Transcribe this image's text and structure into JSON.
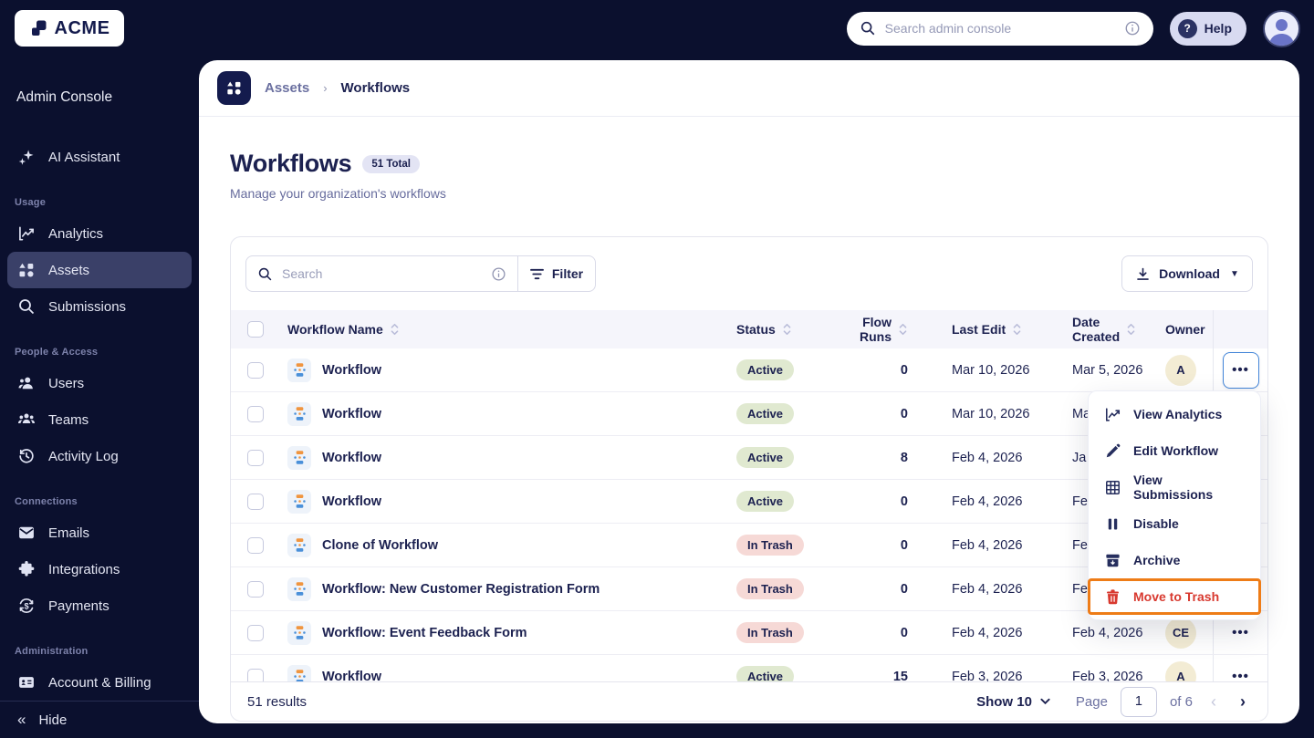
{
  "topbar": {
    "logo_text": "ACME",
    "search_placeholder": "Search admin console",
    "help_label": "Help"
  },
  "sidebar": {
    "title": "Admin Console",
    "groups": [
      {
        "label": null,
        "items": [
          {
            "label": "AI Assistant",
            "icon": "sparkle-icon",
            "active": false
          }
        ]
      },
      {
        "label": "Usage",
        "items": [
          {
            "label": "Analytics",
            "icon": "analytics-icon",
            "active": false
          },
          {
            "label": "Assets",
            "icon": "assets-icon",
            "active": true
          },
          {
            "label": "Submissions",
            "icon": "search-icon",
            "active": false
          }
        ]
      },
      {
        "label": "People & Access",
        "items": [
          {
            "label": "Users",
            "icon": "user-icon",
            "active": false
          },
          {
            "label": "Teams",
            "icon": "team-icon",
            "active": false
          },
          {
            "label": "Activity Log",
            "icon": "history-icon",
            "active": false
          }
        ]
      },
      {
        "label": "Connections",
        "items": [
          {
            "label": "Emails",
            "icon": "envelope-icon",
            "active": false
          },
          {
            "label": "Integrations",
            "icon": "puzzle-icon",
            "active": false
          },
          {
            "label": "Payments",
            "icon": "dollar-cycle-icon",
            "active": false
          }
        ]
      },
      {
        "label": "Administration",
        "items": [
          {
            "label": "Account & Billing",
            "icon": "card-icon",
            "active": false
          }
        ]
      }
    ],
    "hide_label": "Hide"
  },
  "breadcrumb": {
    "parent": "Assets",
    "current": "Workflows",
    "icon": "assets-icon"
  },
  "page": {
    "title": "Workflows",
    "total_badge": "51 Total",
    "subtitle": "Manage your organization's workflows"
  },
  "toolbar": {
    "search_placeholder": "Search",
    "filter_label": "Filter",
    "download_label": "Download"
  },
  "table": {
    "columns": [
      {
        "label": "Workflow Name",
        "sortable": true
      },
      {
        "label": "Status",
        "sortable": true
      },
      {
        "label": "Flow Runs",
        "sortable": true
      },
      {
        "label": "Last Edit",
        "sortable": true
      },
      {
        "label": "Date Created",
        "sortable": true
      },
      {
        "label": "Owner",
        "sortable": false
      }
    ],
    "rows": [
      {
        "name": "Workflow",
        "status": "Active",
        "flow_runs": "0",
        "last_edit": "Mar 10, 2026",
        "date_created": "Mar 5, 2026",
        "owner": "A",
        "menu_open": true
      },
      {
        "name": "Workflow",
        "status": "Active",
        "flow_runs": "0",
        "last_edit": "Mar 10, 2026",
        "date_created": "Ma",
        "owner": "",
        "menu_open": false
      },
      {
        "name": "Workflow",
        "status": "Active",
        "flow_runs": "8",
        "last_edit": "Feb 4, 2026",
        "date_created": "Ja",
        "owner": "",
        "menu_open": false
      },
      {
        "name": "Workflow",
        "status": "Active",
        "flow_runs": "0",
        "last_edit": "Feb 4, 2026",
        "date_created": "Fe",
        "owner": "",
        "menu_open": false
      },
      {
        "name": "Clone of Workflow",
        "status": "In Trash",
        "flow_runs": "0",
        "last_edit": "Feb 4, 2026",
        "date_created": "Fe",
        "owner": "",
        "menu_open": false
      },
      {
        "name": "Workflow: New Customer Registration Form",
        "status": "In Trash",
        "flow_runs": "0",
        "last_edit": "Feb 4, 2026",
        "date_created": "Fe",
        "owner": "",
        "menu_open": false
      },
      {
        "name": "Workflow: Event Feedback Form",
        "status": "In Trash",
        "flow_runs": "0",
        "last_edit": "Feb 4, 2026",
        "date_created": "Feb 4, 2026",
        "owner": "CE",
        "menu_open": false
      },
      {
        "name": "Workflow",
        "status": "Active",
        "flow_runs": "15",
        "last_edit": "Feb 3, 2026",
        "date_created": "Feb 3, 2026",
        "owner": "A",
        "menu_open": false
      }
    ]
  },
  "context_menu": {
    "items": [
      {
        "label": "View Analytics",
        "icon": "analytics-icon",
        "danger": false,
        "highlighted": false
      },
      {
        "label": "Edit Workflow",
        "icon": "pencil-icon",
        "danger": false,
        "highlighted": false
      },
      {
        "label": "View Submissions",
        "icon": "grid-table-icon",
        "danger": false,
        "highlighted": false
      },
      {
        "label": "Disable",
        "icon": "pause-icon",
        "danger": false,
        "highlighted": false
      },
      {
        "label": "Archive",
        "icon": "archive-icon",
        "danger": false,
        "highlighted": false
      },
      {
        "label": "Move to Trash",
        "icon": "trash-icon",
        "danger": true,
        "highlighted": true
      }
    ]
  },
  "footer": {
    "results": "51 results",
    "show_label": "Show 10",
    "page_label": "Page",
    "page_value": "1",
    "of_label": "of 6"
  },
  "colors": {
    "navy_bg": "#0b102e",
    "navy_deep": "#141b4d",
    "text_dark": "#1c2150",
    "text_muted": "#6b70a0",
    "badge_active_bg": "#e0e9d0",
    "badge_trash_bg": "#f6d9d6",
    "owner_chip_bg": "#f3ecd4",
    "focus_blue": "#4285d8",
    "annotation_orange": "#ee7c17",
    "danger_red": "#d8392f",
    "help_pill_bg": "#d8daf1",
    "avatar_purple": "#6a74c8"
  }
}
